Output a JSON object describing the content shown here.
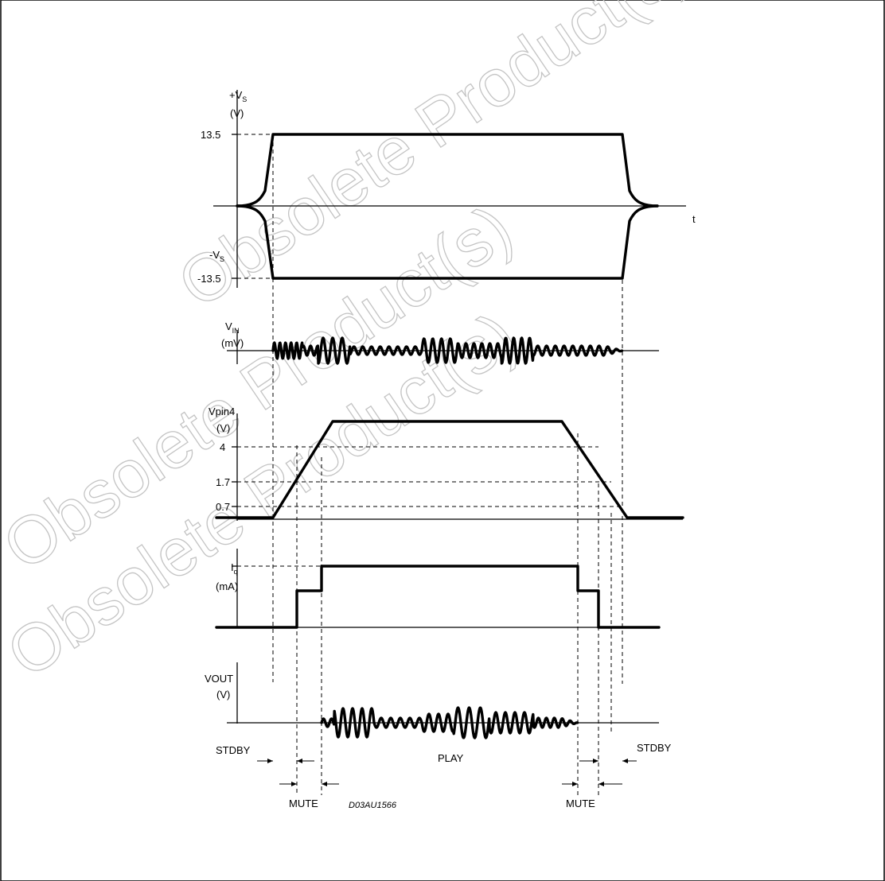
{
  "watermark": {
    "main": "Obsolete Product(s) - Obsolete Product(s)",
    "left1": "Obsolete Product(s)",
    "left2": "Obsolete Product(s)"
  },
  "panels": {
    "vs": {
      "label_top": "+V",
      "label_top_sub": "S",
      "unit": "(V)",
      "label_neg": "-V",
      "label_neg_sub": "S",
      "tick_pos": "13.5",
      "tick_neg": "-13.5",
      "time_label": "t"
    },
    "vin": {
      "label": "V",
      "label_sub": "IN",
      "unit": "(mV)"
    },
    "vpin4": {
      "label": "Vpin4",
      "unit": "(V)",
      "ticks": [
        "4",
        "1.7",
        "0.7"
      ]
    },
    "iq": {
      "label": "I",
      "label_sub": "q",
      "unit": "(mA)"
    },
    "vout": {
      "label": "VOUT",
      "unit": "(V)"
    }
  },
  "states": {
    "stdby_left": "STDBY",
    "play": "PLAY",
    "stdby_right": "STDBY",
    "mute_left": "MUTE",
    "mute_right": "MUTE"
  },
  "figure_code": "D03AU1566"
}
